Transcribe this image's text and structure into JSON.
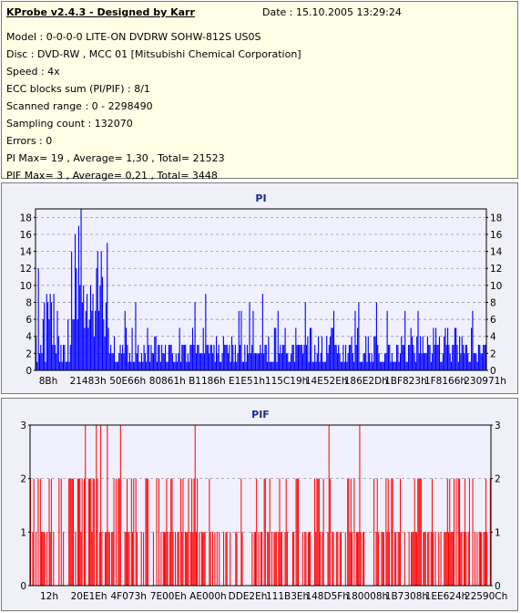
{
  "info": {
    "title": "KProbe v2.4.3 - Designed by Karr",
    "date": "Date : 15.10.2005 13:29:24",
    "lines": [
      "Model : 0-0-0-0 LITE-ON DVDRW SOHW-812S  US0S",
      "Disc : DVD-RW , MCC 01 [Mitsubishi Chemical Corporation]",
      "Speed : 4x",
      "ECC blocks sum (PI/PIF) : 8/1",
      "Scanned range : 0 - 2298490",
      "Sampling count : 132070",
      "Errors : 0",
      "PI Max= 19 , Average= 1,30 , Total= 21523",
      "PIF Max= 3 , Average= 0,21 , Total= 3448"
    ]
  },
  "colors": {
    "pi_bar": "#0000ff",
    "pif_bar": "#ff0000",
    "plot_bg": "#f0f0ff",
    "title_color": "#1a2a8a"
  },
  "chart_data": [
    {
      "type": "bar",
      "title": "PI",
      "ylim": [
        0,
        19
      ],
      "yticks": [
        0,
        2,
        4,
        6,
        8,
        10,
        12,
        14,
        16,
        18
      ],
      "xtick_labels": [
        "8Bh",
        "21483h",
        "50E66h",
        "80861h",
        "B1186h",
        "E1E51h",
        "115C19h",
        "14E52Eh",
        "186E2Dh",
        "1BF823h",
        "1F8166h",
        "230971h"
      ],
      "grid": true,
      "summary": {
        "max": 19,
        "average": 1.3,
        "total": 21523
      }
    },
    {
      "type": "bar",
      "title": "PIF",
      "ylim": [
        0,
        3
      ],
      "yticks": [
        0,
        1,
        2,
        3
      ],
      "xtick_labels": [
        "12h",
        "20E1Eh",
        "4F073h",
        "7E00Eh",
        "AE000h",
        "DDE2Eh",
        "111B3Eh",
        "148D5Fh",
        "180008h",
        "1B7308h",
        "1EE624h",
        "22590Ch"
      ],
      "grid": true,
      "summary": {
        "max": 3,
        "average": 0.21,
        "total": 3448
      }
    }
  ]
}
